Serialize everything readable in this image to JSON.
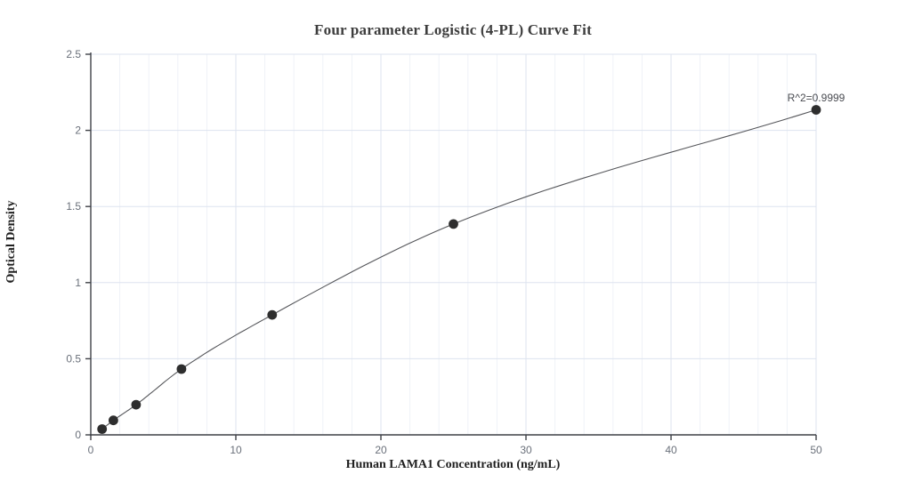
{
  "chart_data": {
    "type": "scatter",
    "title": "Four parameter Logistic (4-PL) Curve Fit",
    "xlabel": "Human LAMA1 Concentration (ng/mL)",
    "ylabel": "Optical Density",
    "x": [
      0.78,
      1.56,
      3.125,
      6.25,
      12.5,
      25,
      50
    ],
    "y": [
      0.038,
      0.095,
      0.198,
      0.432,
      0.788,
      1.385,
      2.135
    ],
    "fit_type": "4-parameter logistic curve through all points",
    "annotation": {
      "text": "R^2=0.9999",
      "x": 50,
      "y": 2.19
    },
    "xlim": [
      0,
      50
    ],
    "ylim": [
      0,
      2.5
    ],
    "xticks": [
      0,
      10,
      20,
      30,
      40,
      50
    ],
    "yticks": [
      0,
      0.5,
      1,
      1.5,
      2,
      2.5
    ],
    "minor_x_step": 2,
    "grid": true,
    "legend": "none",
    "colors": {
      "point": "#2e2e2e",
      "line": "#55565a",
      "grid_major": "#dde3ef",
      "grid_minor": "#eff2f8",
      "axis": "#3f4147",
      "tick_label": "#6a707a",
      "annotation": "#4a4c52",
      "background": "#ffffff"
    }
  }
}
